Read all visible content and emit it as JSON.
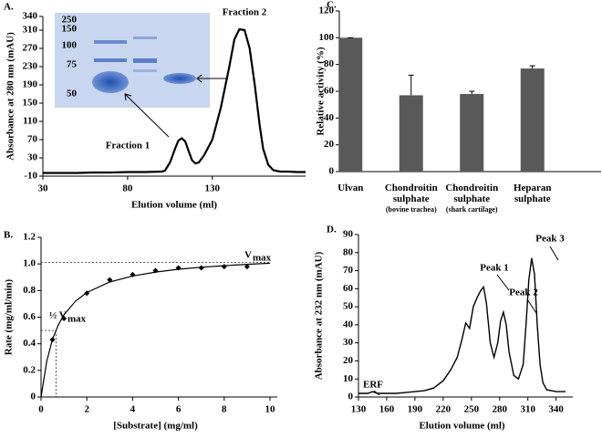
{
  "chart_data": [
    {
      "type": "line",
      "panel": "A.",
      "ylabel": "Absorbance at 280 nm (mAU)",
      "xlabel": "Elution volume (ml)",
      "x": [
        30,
        40,
        50,
        60,
        70,
        80,
        90,
        100,
        102,
        105,
        108,
        110,
        112,
        114,
        116,
        118,
        120,
        122,
        125,
        130,
        135,
        140,
        143,
        146,
        149,
        152,
        155,
        158,
        160,
        163,
        166,
        170,
        175,
        180,
        185
      ],
      "values": [
        -3,
        -3,
        -3,
        -2,
        -2,
        -1,
        -1,
        0,
        2,
        20,
        50,
        68,
        73,
        66,
        45,
        25,
        18,
        20,
        35,
        70,
        140,
        230,
        290,
        312,
        310,
        270,
        190,
        100,
        50,
        15,
        3,
        0,
        0,
        -1,
        -1
      ],
      "color": "#000000",
      "xlim": [
        30,
        185
      ],
      "ylim": [
        -10,
        340
      ],
      "xticks": [
        30,
        80,
        130
      ],
      "yticks": [
        -10,
        30,
        70,
        110,
        150,
        190,
        230,
        270,
        310,
        340
      ],
      "annotations": [
        "Fraction 1",
        "Fraction 2"
      ],
      "gel_markers": [
        "250",
        "150",
        "100",
        "75",
        "50"
      ]
    },
    {
      "type": "scatter",
      "panel": "B.",
      "ylabel": "Rate (mg/ml/min)",
      "xlabel": "[Substrate] (mg/ml)",
      "x": [
        0.5,
        1,
        2,
        3,
        4,
        5,
        6,
        7,
        8,
        9
      ],
      "values": [
        0.43,
        0.59,
        0.78,
        0.88,
        0.92,
        0.95,
        0.97,
        0.97,
        0.98,
        0.98
      ],
      "fit_x": [
        0,
        0.25,
        0.5,
        0.75,
        1,
        1.5,
        2,
        3,
        4,
        5,
        6,
        7,
        8,
        9,
        10
      ],
      "fit_values": [
        0,
        0.27,
        0.432,
        0.54,
        0.617,
        0.72,
        0.785,
        0.864,
        0.909,
        0.939,
        0.96,
        0.975,
        0.987,
        0.997,
        1.005
      ],
      "vmax": 1.01,
      "half_vmax": 0.5,
      "km": 0.65,
      "xlim": [
        0,
        10
      ],
      "ylim": [
        0,
        1.2
      ],
      "xticks": [
        0,
        2,
        4,
        6,
        8,
        10
      ],
      "yticks": [
        0,
        0.2,
        0.4,
        0.6,
        0.8,
        {
          "value": 1,
          "label": "1.0"
        },
        1.2
      ],
      "annotations": [
        "V",
        "max",
        "½ V",
        "max"
      ]
    },
    {
      "type": "bar",
      "panel": "C.",
      "ylabel": "Relative activity (%)",
      "categories": [
        "Ulvan",
        "Chondroitin sulphate",
        "Chondroitin sulphate",
        "Heparan sulphate"
      ],
      "sublabels": [
        null,
        "(bovine trachea)",
        "(shark cartilage)",
        null
      ],
      "values": [
        100,
        57,
        58,
        77
      ],
      "errors": [
        0,
        15,
        2,
        2
      ],
      "color": "#595959",
      "ylim": [
        0,
        120
      ],
      "yticks": [
        0,
        20,
        40,
        60,
        80,
        100,
        120
      ]
    },
    {
      "type": "line",
      "panel": "D.",
      "ylabel": "Absorbance at 232 nm (mAU)",
      "xlabel": "Elution volume (ml)",
      "x": [
        130,
        135,
        140,
        145,
        150,
        160,
        170,
        180,
        190,
        200,
        210,
        220,
        228,
        235,
        240,
        244,
        248,
        252,
        256,
        260,
        263,
        266,
        270,
        274,
        278,
        281,
        284,
        287,
        290,
        295,
        300,
        305,
        308,
        311,
        314,
        317,
        320,
        323,
        326,
        330,
        340,
        350
      ],
      "values": [
        2,
        2,
        2,
        3,
        2,
        2,
        2,
        2.5,
        3,
        3.5,
        5,
        9,
        15,
        22,
        32,
        41,
        38,
        50,
        55,
        59,
        61,
        52,
        30,
        22,
        30,
        42,
        47,
        40,
        25,
        12,
        10,
        18,
        40,
        65,
        77,
        68,
        40,
        18,
        8,
        4,
        3,
        3
      ],
      "color": "#000000",
      "xlim": [
        130,
        350
      ],
      "ylim": [
        0,
        90
      ],
      "xticks": [
        130,
        160,
        190,
        220,
        250,
        280,
        310,
        340
      ],
      "yticks": [
        0,
        10,
        20,
        30,
        40,
        50,
        60,
        70,
        80,
        90
      ],
      "annotations": [
        "ERF",
        "Peak 1",
        "Peak 2",
        "Peak 3"
      ]
    }
  ]
}
